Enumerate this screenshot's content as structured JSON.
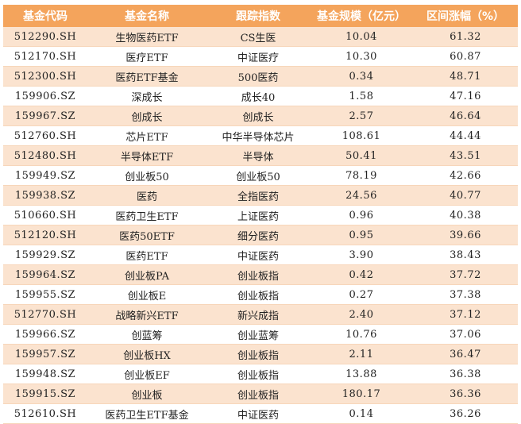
{
  "table": {
    "headers": [
      "基金代码",
      "基金名称",
      "跟踪指数",
      "基金规模（亿元）",
      "区间涨幅（%）"
    ],
    "rows": [
      {
        "code": "512290.SH",
        "name": "生物医药ETF",
        "index": "CS生医",
        "size": "10.04",
        "change": "61.32"
      },
      {
        "code": "512170.SH",
        "name": "医疗ETF",
        "index": "中证医疗",
        "size": "10.30",
        "change": "60.87"
      },
      {
        "code": "512300.SH",
        "name": "医药ETF基金",
        "index": "500医药",
        "size": "0.34",
        "change": "48.71"
      },
      {
        "code": "159906.SZ",
        "name": "深成长",
        "index": "成长40",
        "size": "1.58",
        "change": "47.16"
      },
      {
        "code": "159967.SZ",
        "name": "创成长",
        "index": "创成长",
        "size": "2.57",
        "change": "46.64"
      },
      {
        "code": "512760.SH",
        "name": "芯片ETF",
        "index": "中华半导体芯片",
        "size": "108.61",
        "change": "44.44"
      },
      {
        "code": "512480.SH",
        "name": "半导体ETF",
        "index": "半导体",
        "size": "50.41",
        "change": "43.51"
      },
      {
        "code": "159949.SZ",
        "name": "创业板50",
        "index": "创业板50",
        "size": "78.19",
        "change": "42.66"
      },
      {
        "code": "159938.SZ",
        "name": "医药",
        "index": "全指医药",
        "size": "24.56",
        "change": "40.77"
      },
      {
        "code": "510660.SH",
        "name": "医药卫生ETF",
        "index": "上证医药",
        "size": "0.96",
        "change": "40.38"
      },
      {
        "code": "512120.SH",
        "name": "医药50ETF",
        "index": "细分医药",
        "size": "0.95",
        "change": "39.66"
      },
      {
        "code": "159929.SZ",
        "name": "医药ETF",
        "index": "中证医药",
        "size": "3.90",
        "change": "38.43"
      },
      {
        "code": "159964.SZ",
        "name": "创业板PA",
        "index": "创业板指",
        "size": "0.42",
        "change": "37.72"
      },
      {
        "code": "159955.SZ",
        "name": "创业板E",
        "index": "创业板指",
        "size": "0.27",
        "change": "37.38"
      },
      {
        "code": "512770.SH",
        "name": "战略新兴ETF",
        "index": "新兴成指",
        "size": "2.40",
        "change": "37.12"
      },
      {
        "code": "159966.SZ",
        "name": "创蓝筹",
        "index": "创业蓝筹",
        "size": "10.76",
        "change": "37.06"
      },
      {
        "code": "159957.SZ",
        "name": "创业板HX",
        "index": "创业板指",
        "size": "2.11",
        "change": "36.47"
      },
      {
        "code": "159948.SZ",
        "name": "创业板EF",
        "index": "创业板指",
        "size": "13.88",
        "change": "36.38"
      },
      {
        "code": "159915.SZ",
        "name": "创业板",
        "index": "创业板指",
        "size": "180.17",
        "change": "36.36"
      },
      {
        "code": "512610.SH",
        "name": "医药卫生ETF基金",
        "index": "中证医药",
        "size": "0.14",
        "change": "36.26"
      }
    ]
  },
  "colors": {
    "header_bg": "#f4a45c",
    "header_text": "#ffffff",
    "band_row_bg": "#fbe3cf",
    "plain_row_bg": "#ffffff"
  }
}
